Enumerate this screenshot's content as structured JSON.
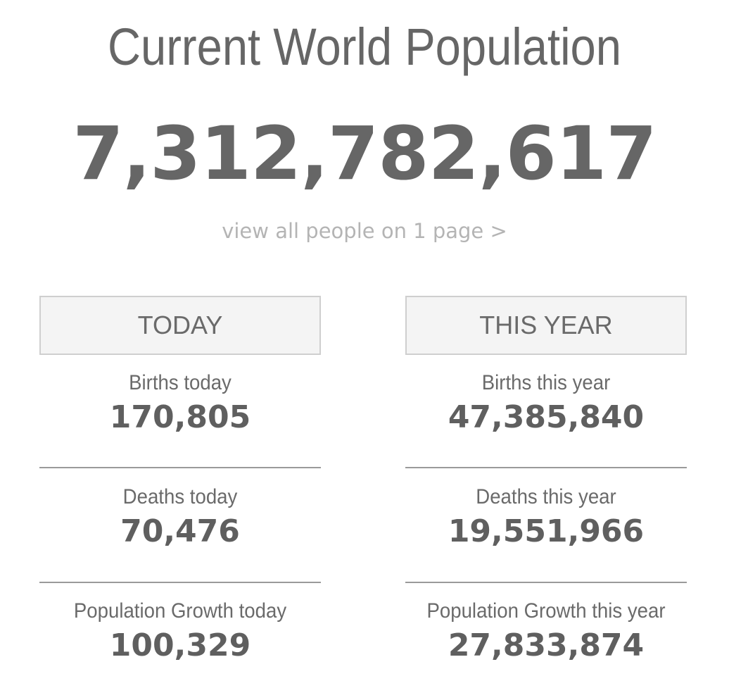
{
  "header": {
    "title": "Current World Population",
    "population": "7,312,782,617",
    "view_all_link": "view all people on 1 page >"
  },
  "today": {
    "heading": "TODAY",
    "stats": [
      {
        "label": "Births today",
        "value": "170,805"
      },
      {
        "label": "Deaths today",
        "value": "70,476"
      },
      {
        "label": "Population Growth today",
        "value": "100,329"
      }
    ]
  },
  "this_year": {
    "heading": "THIS YEAR",
    "stats": [
      {
        "label": "Births this year",
        "value": "47,385,840"
      },
      {
        "label": "Deaths this year",
        "value": "19,551,966"
      },
      {
        "label": "Population Growth this year",
        "value": "27,833,874"
      }
    ]
  },
  "colors": {
    "text": "#666666",
    "link": "#b4b4b4",
    "tab_background": "#f4f4f4",
    "tab_border": "#cfcfcf",
    "divider": "#9a9a9a"
  }
}
